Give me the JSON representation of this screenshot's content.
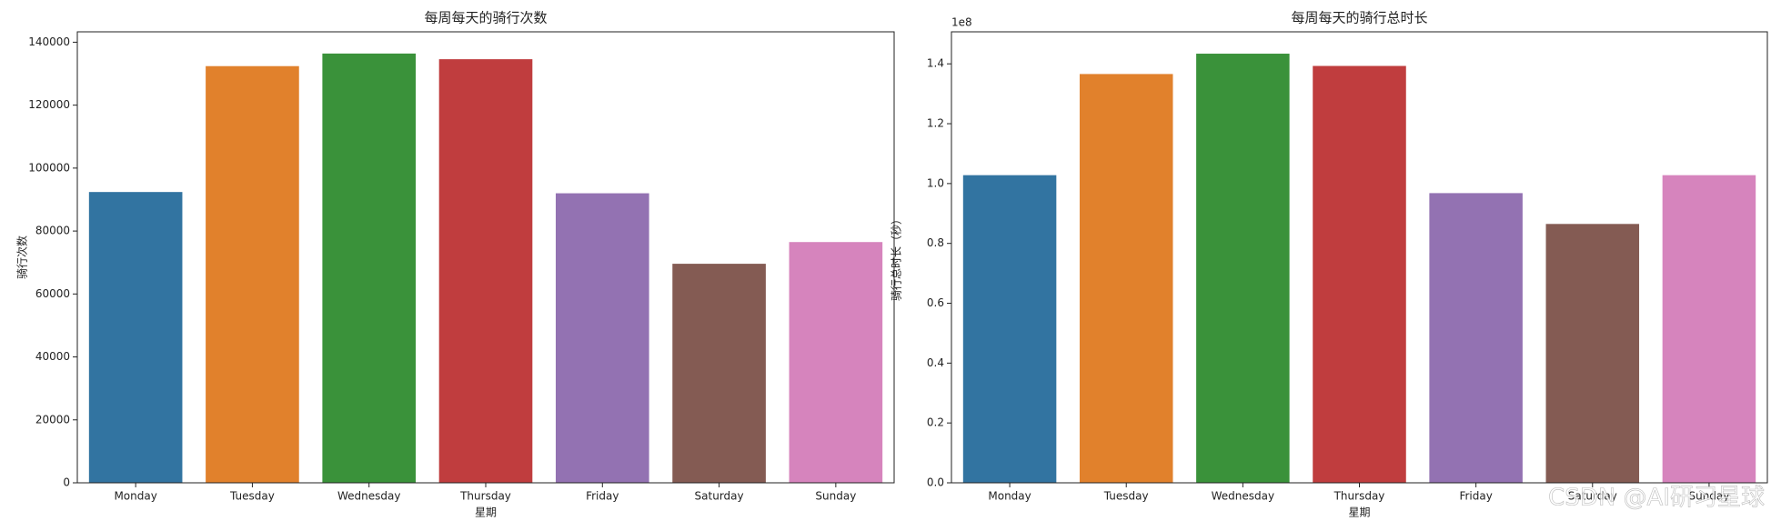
{
  "chart_data": [
    {
      "type": "bar",
      "title": "每周每天的骑行次数",
      "xlabel": "星期",
      "ylabel": "骑行次数",
      "categories": [
        "Monday",
        "Tuesday",
        "Wednesday",
        "Thursday",
        "Friday",
        "Saturday",
        "Sunday"
      ],
      "values": [
        92400,
        132400,
        136400,
        134600,
        92000,
        69600,
        76500
      ],
      "colors": [
        "#3274a1",
        "#e1812c",
        "#3a923a",
        "#c03d3e",
        "#9372b2",
        "#845b53",
        "#d684bd"
      ],
      "ylim": [
        0,
        143300
      ],
      "yticks": [
        0,
        20000,
        40000,
        60000,
        80000,
        100000,
        120000,
        140000
      ]
    },
    {
      "type": "bar",
      "title": "每周每天的骑行总时长",
      "xlabel": "星期",
      "ylabel": "骑行总时长（秒）",
      "offset_label": "1e8",
      "categories": [
        "Monday",
        "Tuesday",
        "Wednesday",
        "Thursday",
        "Friday",
        "Saturday",
        "Sunday"
      ],
      "values": [
        1.028,
        1.366,
        1.434,
        1.393,
        0.968,
        0.865,
        1.028
      ],
      "colors": [
        "#3274a1",
        "#e1812c",
        "#3a923a",
        "#c03d3e",
        "#9372b2",
        "#845b53",
        "#d684bd"
      ],
      "ylim": [
        0,
        1.507
      ],
      "yticks": [
        {
          "value": 0,
          "label": "0.0"
        },
        0.2,
        0.4,
        0.6,
        0.8,
        {
          "value": 1,
          "label": "1.0"
        },
        1.2,
        1.4
      ]
    }
  ],
  "watermark": "CSDN @AI研习星球"
}
